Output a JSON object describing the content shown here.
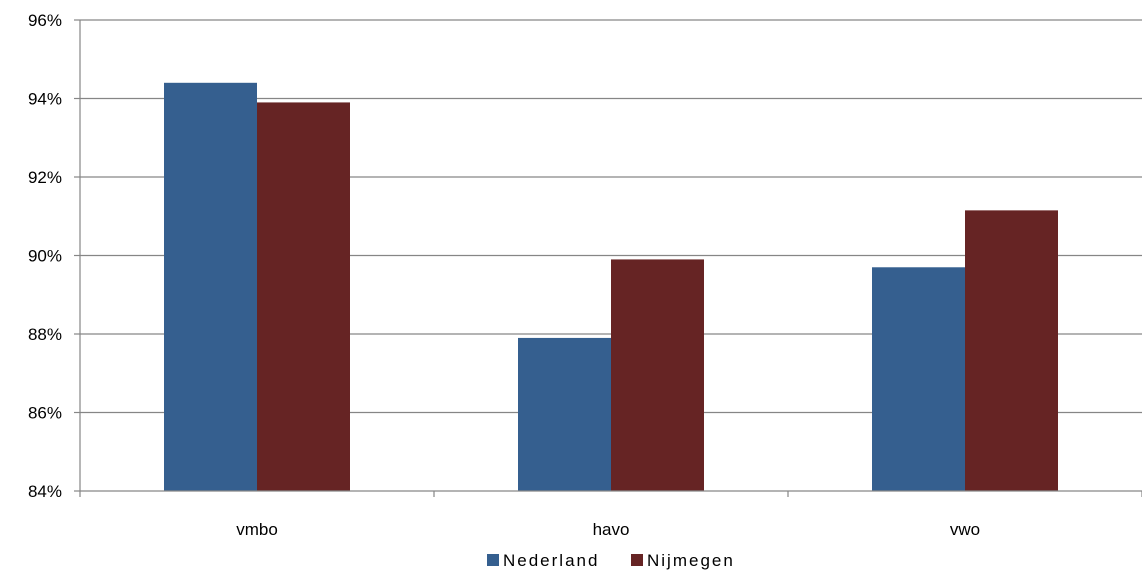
{
  "chart_data": {
    "type": "bar",
    "categories": [
      "vmbo",
      "havo",
      "vwo"
    ],
    "series": [
      {
        "name": "Nederland",
        "values": [
          94.4,
          87.9,
          89.7
        ]
      },
      {
        "name": "Nijmegen",
        "values": [
          93.9,
          89.9,
          91.15
        ]
      }
    ],
    "ylim": [
      84,
      96
    ],
    "y_ticks": [
      84,
      86,
      88,
      90,
      92,
      94,
      96
    ],
    "y_tick_labels": [
      "84%",
      "86%",
      "88%",
      "90%",
      "92%",
      "94%",
      "96%"
    ],
    "title": "",
    "xlabel": "",
    "ylabel": "",
    "grid": true,
    "legend_position": "bottom",
    "colors": {
      "Nederland": "#355f8f",
      "Nijmegen": "#662424",
      "grid": "#868686",
      "axis": "#868686"
    }
  }
}
